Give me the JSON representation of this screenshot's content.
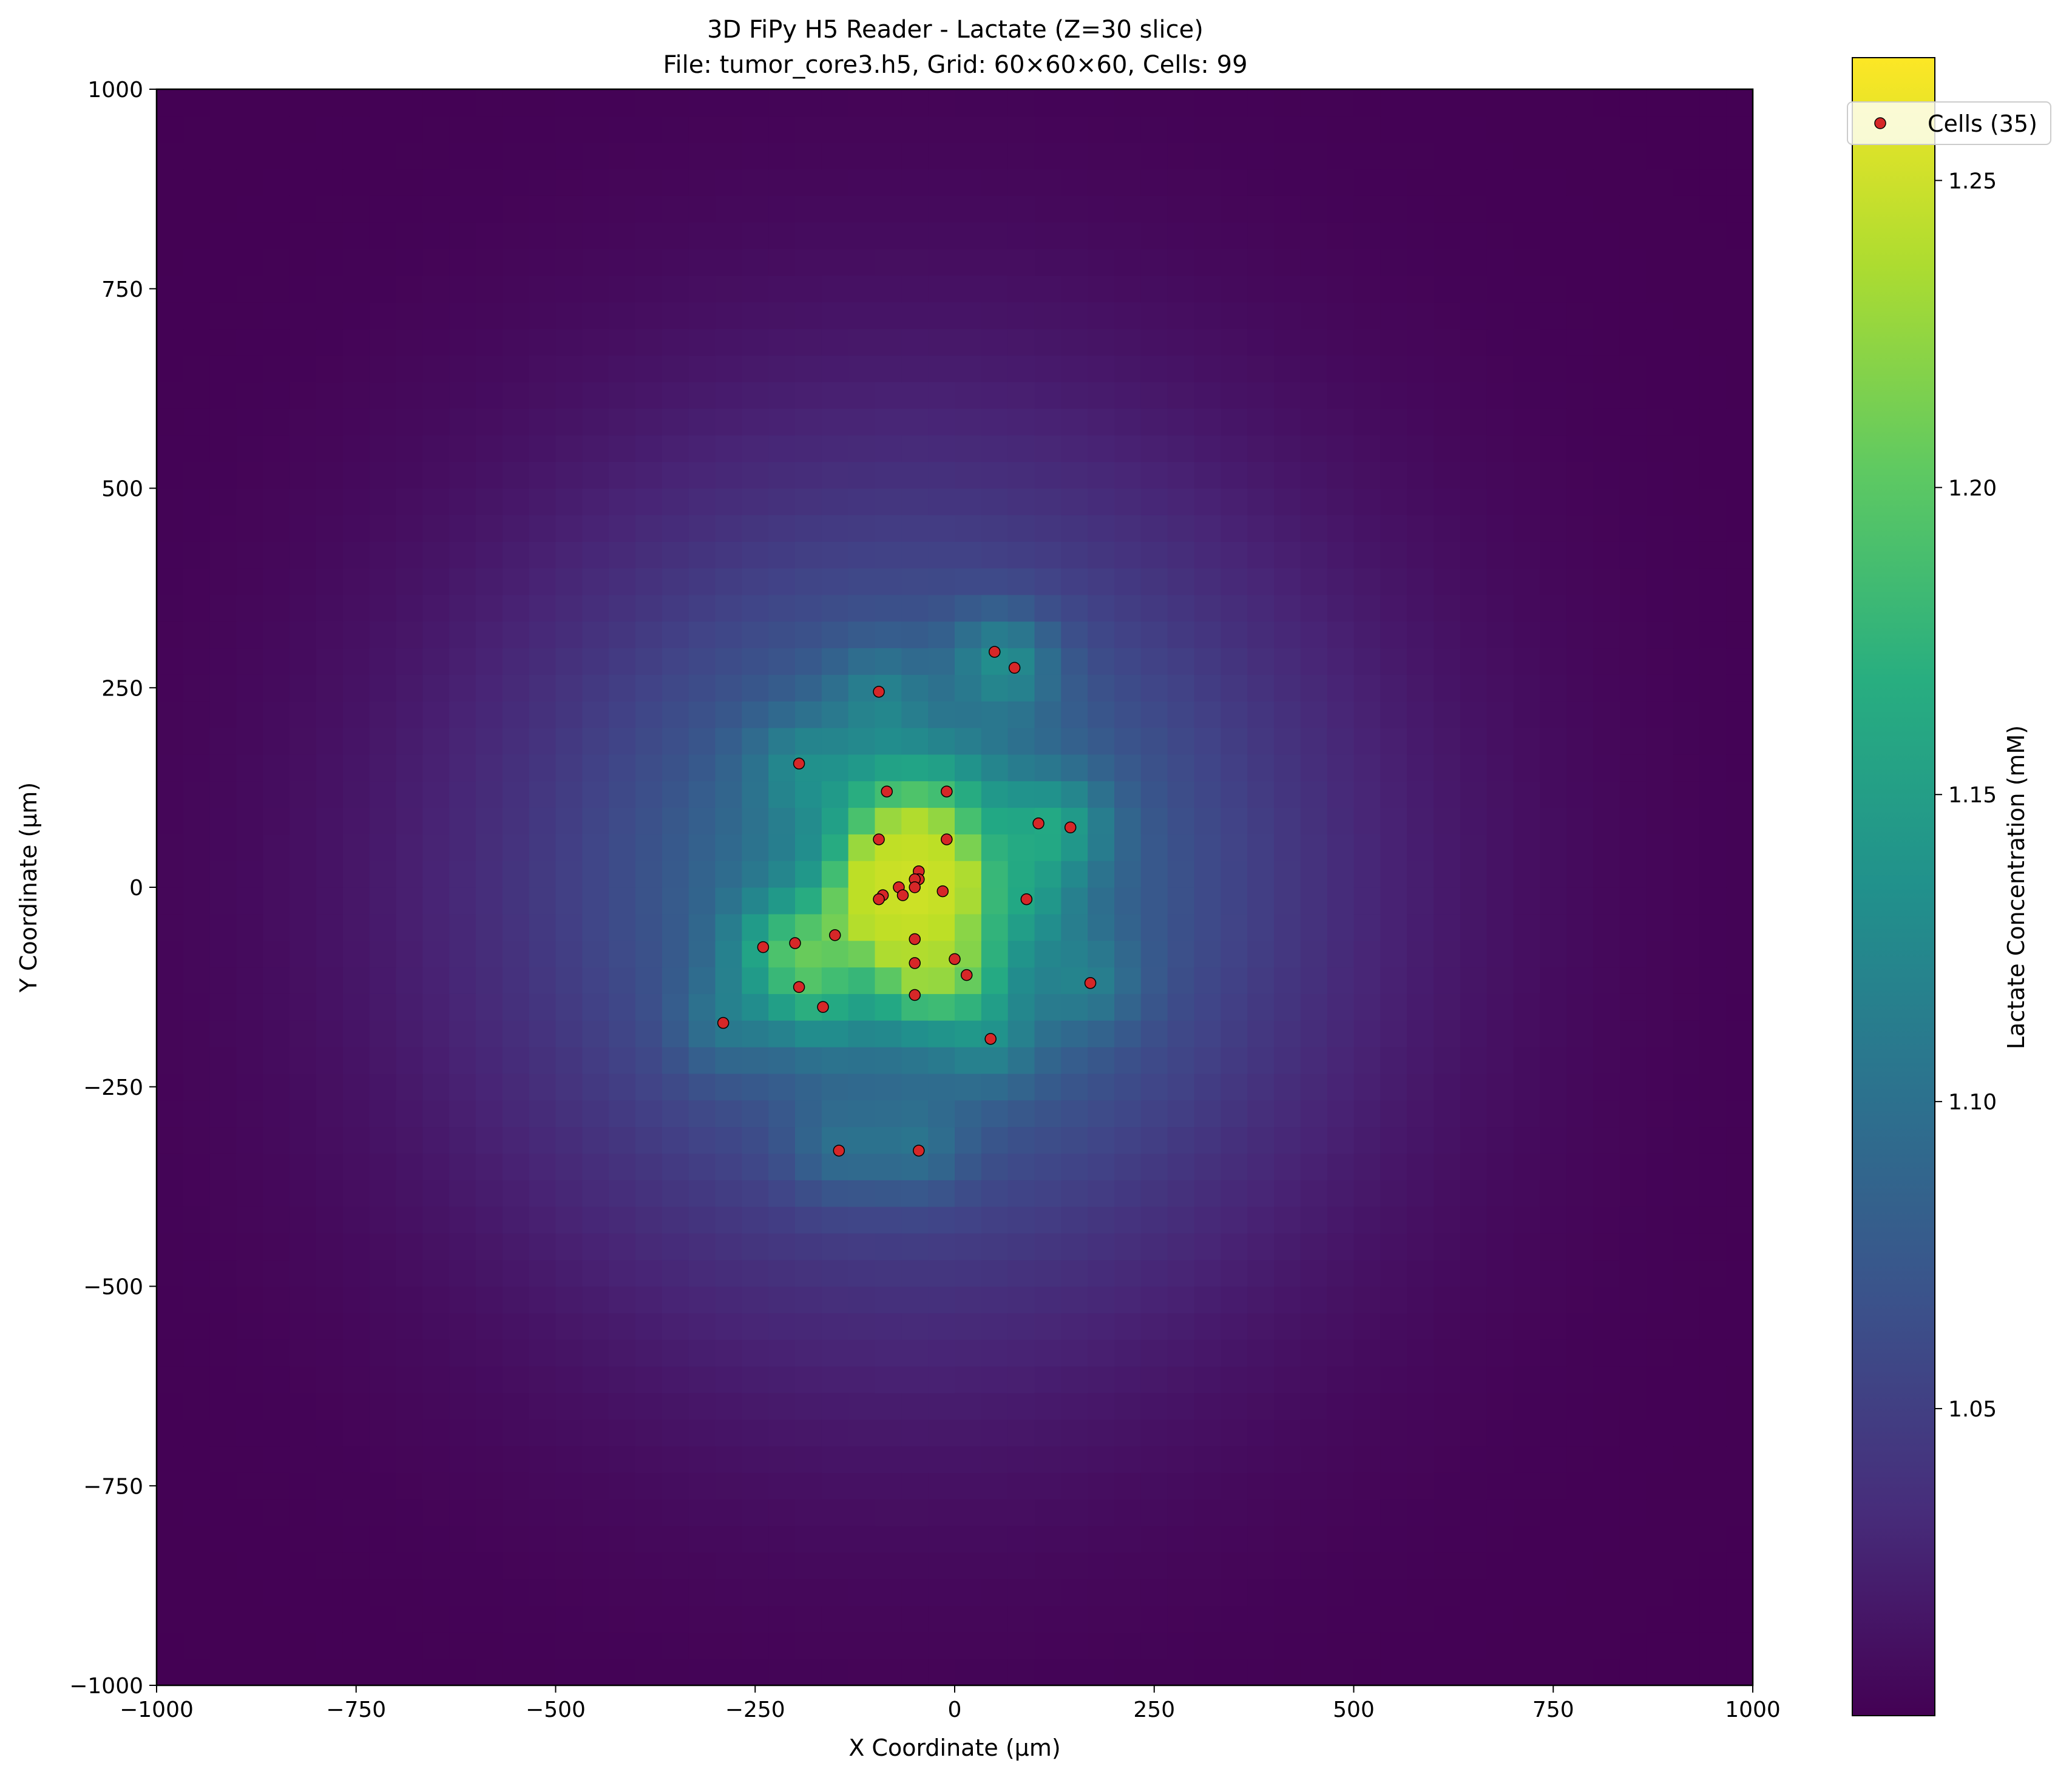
{
  "chart_data": {
    "type": "heatmap",
    "title": "3D FiPy H5 Reader - Lactate (Z=30 slice)",
    "subtitle": "File: tumor_core3.h5, Grid: 60×60×60, Cells: 99",
    "xlabel": "X Coordinate (µm)",
    "ylabel": "Y Coordinate (µm)",
    "xlim": [
      -1000,
      1000
    ],
    "ylim": [
      -1000,
      1000
    ],
    "x_ticks": [
      -1000,
      -750,
      -500,
      -250,
      0,
      250,
      500,
      750,
      1000
    ],
    "y_ticks": [
      -1000,
      -750,
      -500,
      -250,
      0,
      250,
      500,
      750,
      1000
    ],
    "x_tick_labels": [
      "−1000",
      "−750",
      "−500",
      "−250",
      "0",
      "250",
      "500",
      "750",
      "1000"
    ],
    "y_tick_labels": [
      "−1000",
      "−750",
      "−500",
      "−250",
      "0",
      "250",
      "500",
      "750",
      "1000"
    ],
    "grid": false,
    "colormap": "viridis",
    "colorbar": {
      "label": "Lactate Concentration (mM)",
      "range": [
        1.0,
        1.27
      ],
      "ticks": [
        1.05,
        1.1,
        1.15,
        1.2,
        1.25
      ],
      "tick_labels": [
        "1.05",
        "1.10",
        "1.15",
        "1.20",
        "1.25"
      ]
    },
    "field": {
      "grid_size": 60,
      "peak_center": [
        -55,
        0
      ],
      "peak_value": 1.27,
      "baseline_value": 1.0
    },
    "legend": {
      "position": "top-right",
      "label": "Cells (35)"
    },
    "scatter_color": "#d62728",
    "cells": [
      {
        "x": 50,
        "y": 295
      },
      {
        "x": 75,
        "y": 275
      },
      {
        "x": -95,
        "y": 245
      },
      {
        "x": -195,
        "y": 155
      },
      {
        "x": -85,
        "y": 120
      },
      {
        "x": -10,
        "y": 120
      },
      {
        "x": 105,
        "y": 80
      },
      {
        "x": 145,
        "y": 75
      },
      {
        "x": -95,
        "y": 60
      },
      {
        "x": -10,
        "y": 60
      },
      {
        "x": -45,
        "y": 20
      },
      {
        "x": -45,
        "y": 10
      },
      {
        "x": -50,
        "y": 10
      },
      {
        "x": -70,
        "y": 0
      },
      {
        "x": -50,
        "y": 0
      },
      {
        "x": -15,
        "y": -5
      },
      {
        "x": -90,
        "y": -10
      },
      {
        "x": -65,
        "y": -10
      },
      {
        "x": -95,
        "y": -15
      },
      {
        "x": 90,
        "y": -15
      },
      {
        "x": -150,
        "y": -60
      },
      {
        "x": -50,
        "y": -65
      },
      {
        "x": -200,
        "y": -70
      },
      {
        "x": -240,
        "y": -75
      },
      {
        "x": 0,
        "y": -90
      },
      {
        "x": -50,
        "y": -95
      },
      {
        "x": 15,
        "y": -110
      },
      {
        "x": 170,
        "y": -120
      },
      {
        "x": -195,
        "y": -125
      },
      {
        "x": -50,
        "y": -135
      },
      {
        "x": -165,
        "y": -150
      },
      {
        "x": -290,
        "y": -170
      },
      {
        "x": 45,
        "y": -190
      },
      {
        "x": -145,
        "y": -330
      },
      {
        "x": -45,
        "y": -330
      }
    ]
  }
}
